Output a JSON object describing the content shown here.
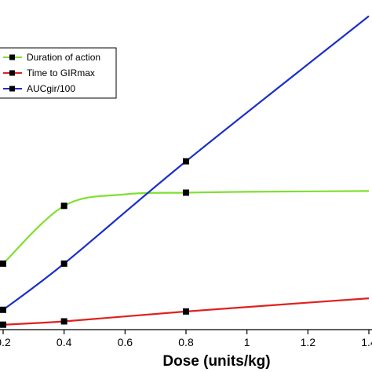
{
  "chart_data": {
    "type": "line",
    "title": "",
    "xlabel": "Dose (units/kg)",
    "ylabel": "",
    "xlim": [
      0.2,
      1.4
    ],
    "ylim": [
      0,
      19.5
    ],
    "x_ticks": [
      0.2,
      0.4,
      0.6,
      0.8,
      1,
      1.2,
      1.4
    ],
    "x_tick_labels": [
      "0.2",
      "0.4",
      "0.6",
      "0.8",
      "1",
      "1.2",
      "1.4"
    ],
    "legend_position": "top-left",
    "grid": false,
    "series": [
      {
        "name": "Duration of action",
        "color": "#7fe030",
        "x": [
          0.2,
          0.4,
          0.8
        ],
        "y": [
          4.0,
          7.5,
          8.3
        ],
        "tail": [
          [
            0.6,
            8.2
          ],
          [
            1.0,
            8.35
          ],
          [
            1.4,
            8.4
          ]
        ]
      },
      {
        "name": "Time to GIRmax",
        "color": "#e02020",
        "x": [
          0.2,
          0.4,
          0.8
        ],
        "y": [
          0.3,
          0.5,
          1.1
        ],
        "tail": [
          [
            1.4,
            1.9
          ]
        ]
      },
      {
        "name": "AUCgir/100",
        "color": "#1a30c8",
        "x": [
          0.2,
          0.4,
          0.8
        ],
        "y": [
          1.2,
          4.0,
          10.2
        ],
        "tail": [
          [
            1.4,
            19.0
          ]
        ]
      }
    ]
  }
}
